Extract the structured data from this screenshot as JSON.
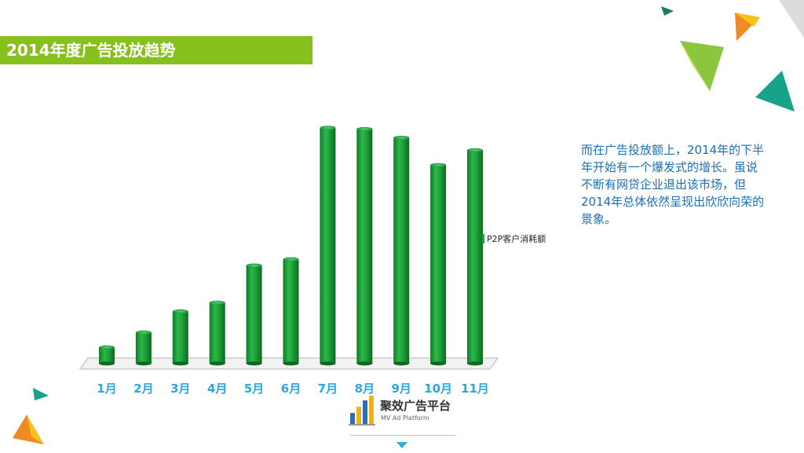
{
  "header": {
    "title": "2014年度广告投放趋势"
  },
  "description": "而在广告投放额上，2014年的下半年开始有一个爆发式的增长。虽说不断有网贷企业退出该市场，但2014年总体依然呈现出欣欣向荣的景象。",
  "logo": {
    "title": "聚效广告平台",
    "subtitle": "MV Ad Platform"
  },
  "colors": {
    "title_bar": "#86c01c",
    "bar": "#1fa23a",
    "axis_label": "#2aa9e0",
    "description": "#1a6fb8"
  },
  "chart_data": {
    "type": "bar",
    "categories": [
      "1月",
      "2月",
      "3月",
      "4月",
      "5月",
      "6月",
      "7月",
      "8月",
      "9月",
      "10月",
      "11月"
    ],
    "series": [
      {
        "name": "P2P客户消耗额",
        "values": [
          6.5,
          12.5,
          21,
          24.5,
          39.5,
          42,
          95,
          94.5,
          91,
          80,
          86
        ]
      }
    ],
    "ylim": [
      0,
      100
    ],
    "legend_position": "right",
    "grid": false
  }
}
